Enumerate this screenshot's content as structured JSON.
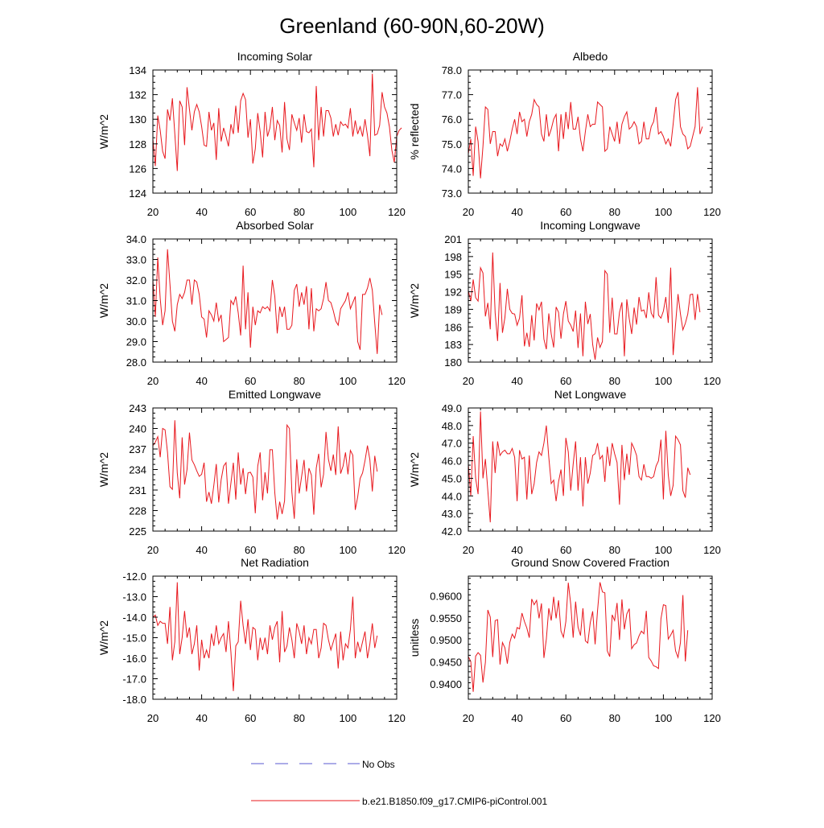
{
  "title": "Greenland (60-90N,60-20W)",
  "legend": {
    "obs_label": "No Obs",
    "obs_color": "#5a5ad0",
    "model_label": "b.e21.B1850.f09_g17.CMIP6-piControl.001",
    "model_color": "#e8181e"
  },
  "chart_data": [
    {
      "type": "line",
      "title": "Incoming Solar",
      "xlabel": "",
      "ylabel": "W/m^2",
      "xlim": [
        20,
        120
      ],
      "ylim": [
        124,
        134
      ],
      "xticks": [
        20,
        40,
        60,
        80,
        100,
        120
      ],
      "xtick_labels": [
        "20",
        "40",
        "60",
        "80",
        "100",
        "120"
      ],
      "yticks": [
        124,
        126,
        128,
        130,
        132,
        134
      ],
      "ytick_labels": [
        "124",
        "126",
        "128",
        "130",
        "132",
        "134"
      ],
      "x_start": 20,
      "values": [
        128.4,
        126.2,
        130.3,
        129.1,
        127.4,
        126.8,
        130.8,
        129.9,
        131.7,
        128.8,
        125.8,
        131.5,
        131.0,
        127.9,
        132.6,
        130.8,
        129.1,
        130.6,
        131.2,
        130.6,
        129.4,
        127.9,
        127.8,
        130.6,
        129.1,
        129.7,
        126.7,
        130.9,
        128.2,
        129.3,
        128.6,
        127.8,
        129.6,
        128.8,
        131.1,
        128.9,
        131.5,
        132.1,
        131.6,
        128.5,
        130.0,
        126.4,
        127.6,
        130.5,
        129.0,
        126.9,
        130.6,
        128.6,
        129.3,
        131.0,
        128.3,
        129.9,
        129.5,
        127.3,
        131.4,
        128.4,
        127.5,
        130.4,
        129.7,
        129.1,
        130.1,
        128.1,
        130.4,
        129.0,
        128.9,
        129.2,
        126.1,
        132.7,
        128.3,
        131.0,
        128.6,
        130.7,
        130.7,
        130.1,
        128.6,
        129.6,
        128.7,
        129.8,
        129.5,
        129.6,
        129.3,
        130.9,
        128.6,
        129.9,
        128.8,
        129.4,
        128.6,
        130.0,
        128.7,
        127.0,
        133.7,
        128.7,
        128.8,
        129.5,
        132.2,
        131.0,
        130.5,
        129.4,
        127.5,
        126.5,
        128.6,
        129.1,
        129.3
      ]
    },
    {
      "type": "line",
      "title": "Albedo",
      "xlabel": "",
      "ylabel": "% reflected",
      "xlim": [
        20,
        120
      ],
      "ylim": [
        73,
        78
      ],
      "xticks": [
        20,
        40,
        60,
        80,
        100,
        120
      ],
      "xtick_labels": [
        "20",
        "40",
        "60",
        "80",
        "100",
        "120"
      ],
      "yticks": [
        73,
        74,
        75,
        76,
        77,
        78
      ],
      "ytick_labels": [
        "73.0",
        "74.0",
        "75.0",
        "76.0",
        "77.0",
        "78.0"
      ],
      "x_start": 20,
      "values": [
        74.6,
        75.2,
        73.7,
        75.7,
        75.1,
        73.6,
        74.9,
        76.5,
        76.4,
        75.0,
        75.5,
        75.5,
        74.5,
        75.0,
        74.9,
        75.2,
        74.7,
        75.1,
        75.6,
        76.0,
        75.4,
        76.3,
        75.9,
        76.0,
        75.3,
        75.9,
        76.2,
        76.8,
        76.6,
        76.5,
        75.4,
        75.1,
        76.2,
        75.3,
        75.6,
        76.0,
        76.2,
        74.7,
        76.2,
        75.2,
        76.3,
        75.6,
        76.7,
        75.6,
        75.6,
        76.1,
        75.2,
        74.7,
        75.5,
        76.2,
        75.7,
        75.8,
        75.8,
        76.7,
        76.6,
        76.5,
        74.7,
        74.8,
        75.7,
        75.4,
        75.1,
        75.9,
        75.0,
        75.8,
        76.1,
        76.3,
        75.6,
        75.7,
        75.9,
        75.7,
        75.0,
        75.1,
        75.9,
        75.2,
        75.2,
        75.7,
        75.9,
        76.5,
        75.4,
        75.5,
        75.3,
        75.0,
        75.2,
        74.9,
        75.8,
        76.8,
        77.1,
        75.7,
        75.4,
        75.3,
        74.8,
        74.9,
        75.3,
        75.7,
        77.3,
        75.4,
        75.7
      ]
    },
    {
      "type": "line",
      "title": "Absorbed Solar",
      "xlabel": "",
      "ylabel": "W/m^2",
      "xlim": [
        20,
        120
      ],
      "ylim": [
        28,
        34
      ],
      "xticks": [
        20,
        40,
        60,
        80,
        100,
        120
      ],
      "xtick_labels": [
        "20",
        "40",
        "60",
        "80",
        "100",
        "120"
      ],
      "yticks": [
        28,
        29,
        30,
        31,
        32,
        33,
        34
      ],
      "ytick_labels": [
        "28.0",
        "29.0",
        "30.0",
        "31.0",
        "32.0",
        "33.0",
        "34.0"
      ],
      "x_start": 20,
      "values": [
        32.0,
        30.2,
        33.1,
        31.1,
        29.8,
        30.5,
        33.5,
        31.8,
        30.0,
        29.5,
        30.8,
        31.3,
        31.1,
        31.4,
        32.0,
        32.0,
        30.8,
        32.0,
        31.9,
        31.3,
        30.2,
        30.1,
        29.2,
        30.5,
        30.3,
        30.0,
        30.9,
        30.0,
        30.3,
        29.0,
        29.1,
        29.2,
        31.0,
        30.8,
        31.2,
        30.4,
        29.3,
        32.7,
        29.6,
        31.4,
        28.7,
        30.7,
        29.8,
        30.5,
        30.4,
        30.7,
        30.6,
        30.7,
        30.5,
        32.0,
        31.2,
        29.4,
        30.7,
        30.2,
        30.7,
        29.6,
        29.6,
        29.8,
        31.5,
        31.8,
        30.7,
        31.4,
        30.8,
        31.7,
        29.6,
        31.6,
        29.5,
        30.6,
        30.5,
        30.6,
        31.1,
        31.9,
        31.0,
        30.9,
        30.5,
        30.0,
        29.8,
        30.6,
        30.8,
        31.0,
        31.4,
        30.6,
        30.9,
        31.2,
        29.0,
        28.6,
        31.3,
        31.3,
        31.6,
        32.1,
        31.5,
        29.9,
        28.4,
        30.8,
        30.3
      ]
    },
    {
      "type": "line",
      "title": "Incoming Longwave",
      "xlabel": "",
      "ylabel": "W/m^2",
      "xlim": [
        20,
        120
      ],
      "ylim": [
        180,
        201
      ],
      "xticks": [
        20,
        40,
        60,
        80,
        100,
        120
      ],
      "xtick_labels": [
        "20",
        "40",
        "60",
        "80",
        "100",
        "120"
      ],
      "yticks": [
        180,
        183,
        186,
        189,
        192,
        195,
        198,
        201
      ],
      "ytick_labels": [
        "180",
        "183",
        "186",
        "189",
        "192",
        "195",
        "198",
        "201"
      ],
      "x_start": 20,
      "values": [
        192.2,
        190.4,
        194.1,
        191.0,
        190.4,
        196.1,
        195.2,
        187.8,
        190.1,
        185.6,
        198.7,
        188.4,
        183.6,
        193.5,
        185.0,
        187.6,
        192.5,
        189.0,
        188.3,
        188.2,
        186.3,
        187.5,
        191.4,
        182.7,
        185.0,
        182.6,
        188.0,
        183.7,
        190.0,
        188.9,
        190.3,
        183.9,
        182.2,
        188.3,
        184.8,
        182.5,
        189.4,
        188.5,
        184.0,
        188.2,
        190.4,
        187.0,
        186.3,
        185.2,
        188.8,
        182.4,
        188.3,
        181.0,
        190.3,
        186.5,
        188.2,
        183.0,
        180.4,
        184.2,
        182.5,
        183.5,
        195.6,
        195.0,
        185.0,
        191.0,
        184.8,
        184.8,
        188.5,
        190.2,
        181.0,
        190.7,
        187.4,
        184.8,
        189.3,
        186.4,
        191.1,
        188.7,
        188.9,
        187.5,
        191.9,
        188.4,
        187.6,
        194.5,
        188.0,
        187.5,
        188.7,
        191.1,
        186.7,
        196.1,
        181.2,
        186.5,
        191.6,
        188.2,
        185.5,
        186.6,
        188.2,
        191.5,
        191.6,
        187.2,
        191.6,
        188.5
      ]
    },
    {
      "type": "line",
      "title": "Emitted Longwave",
      "xlabel": "",
      "ylabel": "W/m^2",
      "xlim": [
        20,
        120
      ],
      "ylim": [
        225,
        243
      ],
      "xticks": [
        20,
        40,
        60,
        80,
        100,
        120
      ],
      "xtick_labels": [
        "20",
        "40",
        "60",
        "80",
        "100",
        "120"
      ],
      "yticks": [
        225,
        228,
        231,
        234,
        237,
        240,
        243
      ],
      "ytick_labels": [
        "225",
        "228",
        "231",
        "234",
        "237",
        "240",
        "243"
      ],
      "x_start": 20,
      "values": [
        237.5,
        238.0,
        238.8,
        235.8,
        240.0,
        239.8,
        236.5,
        231.5,
        231.1,
        241.2,
        233.5,
        229.8,
        238.7,
        231.8,
        234.0,
        239.4,
        235.4,
        234.7,
        233.8,
        233.0,
        233.3,
        235.0,
        229.3,
        230.7,
        229.0,
        231.7,
        234.8,
        229.2,
        232.5,
        234.5,
        235.0,
        229.0,
        232.0,
        235.0,
        229.6,
        236.5,
        231.8,
        234.2,
        230.4,
        233.5,
        233.6,
        232.9,
        227.6,
        234.5,
        236.5,
        229.5,
        233.6,
        230.5,
        236.9,
        236.9,
        230.6,
        226.7,
        229.3,
        227.5,
        229.4,
        240.5,
        240.0,
        230.7,
        226.8,
        235.5,
        230.5,
        233.0,
        235.4,
        230.8,
        234.2,
        233.2,
        227.4,
        234.2,
        236.3,
        231.4,
        233.3,
        239.5,
        235.5,
        233.8,
        236.2,
        233.2,
        240.3,
        233.4,
        234.5,
        236.5,
        233.3,
        236.8,
        236.1,
        228.1,
        230.0,
        232.7,
        233.5,
        235.3,
        237.5,
        235.4,
        230.8,
        236.0,
        233.7
      ]
    },
    {
      "type": "line",
      "title": "Net Longwave",
      "xlabel": "",
      "ylabel": "W/m^2",
      "xlim": [
        20,
        120
      ],
      "ylim": [
        42,
        49
      ],
      "xticks": [
        20,
        40,
        60,
        80,
        100,
        120
      ],
      "xtick_labels": [
        "20",
        "40",
        "60",
        "80",
        "100",
        "120"
      ],
      "yticks": [
        42,
        43,
        44,
        45,
        46,
        47,
        48,
        49
      ],
      "ytick_labels": [
        "42.0",
        "43.0",
        "44.0",
        "45.0",
        "46.0",
        "47.0",
        "48.0",
        "49.0"
      ],
      "x_start": 20,
      "values": [
        45.8,
        44.0,
        47.4,
        45.0,
        44.1,
        48.8,
        45.0,
        46.1,
        44.3,
        42.5,
        47.1,
        45.3,
        47.1,
        46.3,
        46.5,
        46.6,
        46.4,
        46.4,
        46.7,
        46.2,
        43.7,
        46.6,
        46.1,
        46.2,
        43.8,
        46.3,
        44.1,
        44.7,
        45.9,
        46.5,
        46.3,
        47.0,
        48.0,
        46.2,
        44.7,
        44.9,
        43.7,
        44.8,
        45.5,
        44.0,
        47.3,
        46.5,
        44.3,
        45.8,
        47.1,
        44.3,
        46.2,
        43.4,
        46.2,
        44.7,
        45.3,
        46.3,
        46.4,
        47.0,
        46.1,
        46.3,
        44.8,
        46.8,
        45.7,
        47.0,
        46.4,
        45.9,
        43.5,
        46.9,
        44.9,
        46.4,
        45.2,
        47.0,
        46.7,
        46.3,
        45.1,
        44.9,
        45.8,
        45.1,
        45.1,
        45.0,
        45.1,
        45.7,
        46.0,
        47.2,
        43.8,
        47.7,
        45.2,
        44.0,
        44.6,
        47.4,
        47.2,
        46.9,
        44.3,
        43.9,
        45.6,
        45.2
      ]
    },
    {
      "type": "line",
      "title": "Net Radiation",
      "xlabel": "",
      "ylabel": "W/m^2",
      "xlim": [
        20,
        120
      ],
      "ylim": [
        -18,
        -12
      ],
      "xticks": [
        20,
        40,
        60,
        80,
        100,
        120
      ],
      "xtick_labels": [
        "20",
        "40",
        "60",
        "80",
        "100",
        "120"
      ],
      "yticks": [
        -18,
        -17,
        -16,
        -15,
        -14,
        -13,
        -12
      ],
      "ytick_labels": [
        "-18.0",
        "-17.0",
        "-16.0",
        "-15.0",
        "-14.0",
        "-13.0",
        "-12.0"
      ],
      "x_start": 20,
      "values": [
        -14.0,
        -13.9,
        -14.4,
        -14.2,
        -14.3,
        -14.3,
        -15.3,
        -13.5,
        -16.1,
        -15.2,
        -12.3,
        -15.8,
        -15.0,
        -13.7,
        -15.0,
        -14.5,
        -15.8,
        -15.3,
        -14.4,
        -16.6,
        -15.1,
        -16.0,
        -15.6,
        -16.0,
        -14.8,
        -15.4,
        -14.4,
        -15.3,
        -15.0,
        -14.8,
        -15.7,
        -14.2,
        -15.7,
        -17.6,
        -15.4,
        -15.2,
        -13.2,
        -14.4,
        -15.3,
        -14.1,
        -15.6,
        -14.5,
        -14.6,
        -16.1,
        -15.0,
        -15.6,
        -15.0,
        -15.8,
        -14.4,
        -15.1,
        -14.5,
        -14.2,
        -16.2,
        -13.7,
        -15.7,
        -15.4,
        -14.5,
        -15.1,
        -16.0,
        -14.3,
        -14.7,
        -15.3,
        -14.4,
        -15.8,
        -15.0,
        -15.3,
        -14.6,
        -14.6,
        -16.0,
        -15.5,
        -14.3,
        -14.4,
        -15.1,
        -15.6,
        -15.2,
        -14.8,
        -16.5,
        -14.7,
        -16.1,
        -15.3,
        -15.5,
        -14.6,
        -13.0,
        -16.0,
        -15.2,
        -15.7,
        -15.2,
        -14.7,
        -16.0,
        -15.3,
        -14.3,
        -15.5,
        -14.9
      ]
    },
    {
      "type": "line",
      "title": "Ground Snow Covered Fraction",
      "xlabel": "",
      "ylabel": "unitless",
      "xlim": [
        20,
        120
      ],
      "ylim": [
        0.9365,
        0.9645
      ],
      "xticks": [
        20,
        40,
        60,
        80,
        100,
        120
      ],
      "xtick_labels": [
        "20",
        "40",
        "60",
        "80",
        "100",
        "120"
      ],
      "yticks": [
        0.94,
        0.945,
        0.95,
        0.955,
        0.96
      ],
      "ytick_labels": [
        "0.9400",
        "0.9450",
        "0.9500",
        "0.9550",
        "0.9600"
      ],
      "x_start": 20,
      "values": [
        0.9462,
        0.9451,
        0.9382,
        0.9463,
        0.9471,
        0.9465,
        0.9403,
        0.9449,
        0.9568,
        0.9552,
        0.9461,
        0.9544,
        0.9546,
        0.9444,
        0.9494,
        0.9482,
        0.9446,
        0.9494,
        0.9513,
        0.9504,
        0.9528,
        0.9525,
        0.9561,
        0.9542,
        0.9527,
        0.9505,
        0.9593,
        0.958,
        0.959,
        0.9549,
        0.9583,
        0.9459,
        0.9502,
        0.9572,
        0.9544,
        0.9598,
        0.9549,
        0.959,
        0.952,
        0.9506,
        0.9542,
        0.963,
        0.9581,
        0.9505,
        0.9587,
        0.9529,
        0.951,
        0.9572,
        0.9498,
        0.9493,
        0.9539,
        0.9565,
        0.949,
        0.9567,
        0.9631,
        0.9609,
        0.9607,
        0.9475,
        0.9462,
        0.9557,
        0.9544,
        0.9584,
        0.95,
        0.9592,
        0.9524,
        0.9559,
        0.9571,
        0.948,
        0.9489,
        0.9493,
        0.9509,
        0.952,
        0.9514,
        0.9566,
        0.946,
        0.9452,
        0.9441,
        0.9439,
        0.9435,
        0.9548,
        0.958,
        0.9578,
        0.9502,
        0.9511,
        0.9522,
        0.9475,
        0.946,
        0.9494,
        0.9602,
        0.9451,
        0.9522
      ]
    }
  ]
}
